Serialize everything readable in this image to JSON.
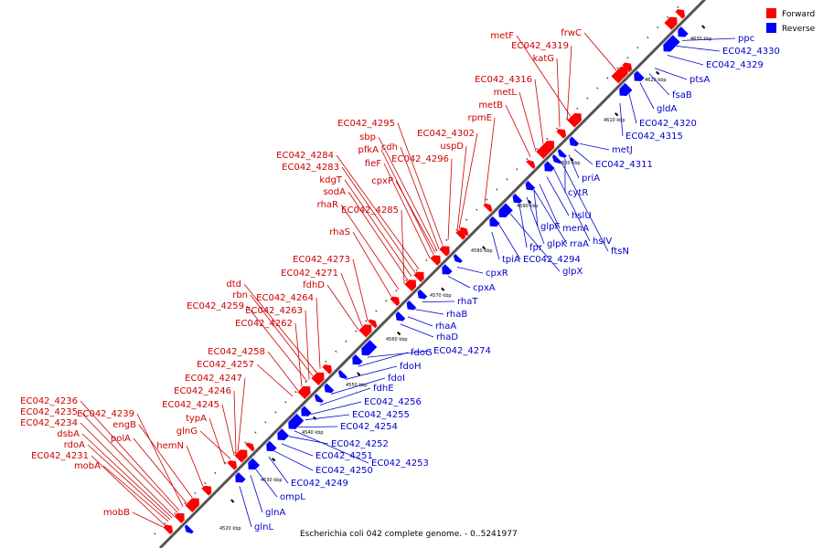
{
  "caption": "Escherichia coli 042 complete genome. - 0..5241977",
  "legend": {
    "forward": {
      "label": "Forward",
      "color": "#ff0000"
    },
    "reverse": {
      "label": "Reverse",
      "color": "#0000ff"
    }
  },
  "colors": {
    "forward_text": "#cc0000",
    "reverse_text": "#0000cc",
    "backbone": "#555555"
  },
  "ticks": [
    "4520 kbp",
    "4530 kbp",
    "4540 kbp",
    "4550 kbp",
    "4560 kbp",
    "4570 kbp",
    "4580 kbp",
    "4590 kbp",
    "4600 kbp",
    "4610 kbp",
    "4620 kbp",
    "4630 kbp"
  ],
  "forward_labels": [
    "mobB",
    "EC042_4231",
    "mobA",
    "rdoA",
    "dsbA",
    "EC042_4234",
    "EC042_4235",
    "EC042_4236",
    "EC042_4239",
    "polA",
    "engB",
    "hemN",
    "typA",
    "glnG",
    "EC042_4245",
    "EC042_4246",
    "EC042_4247",
    "EC042_4257",
    "EC042_4258",
    "EC042_4262",
    "EC042_4259",
    "EC042_4263",
    "rbn",
    "dtd",
    "EC042_4264",
    "fdhD",
    "EC042_4271",
    "EC042_4273",
    "rhaS",
    "rhaR",
    "EC042_4285",
    "sodA",
    "kdgT",
    "EC042_4283",
    "EC042_4284",
    "fieF",
    "pfkA",
    "cpxP",
    "sbp",
    "cdh",
    "EC042_4295",
    "EC042_4296",
    "uspD",
    "EC042_4302",
    "rpmE",
    "metB",
    "metL",
    "EC042_4316",
    "katG",
    "EC042_4319",
    "metF",
    "frwC"
  ],
  "reverse_labels": [
    "glnL",
    "glnA",
    "ompL",
    "EC042_4249",
    "EC042_4250",
    "EC042_4251",
    "EC042_4252",
    "EC042_4253",
    "EC042_4254",
    "EC042_4255",
    "EC042_4256",
    "fdhE",
    "fdoI",
    "fdoH",
    "fdoG",
    "EC042_4274",
    "rhaD",
    "rhaA",
    "rhaB",
    "rhaT",
    "cpxA",
    "cpxR",
    "tpiA",
    "EC042_4294",
    "glpX",
    "fpr",
    "glpK",
    "rraA",
    "glpF",
    "menA",
    "hslU",
    "hslV",
    "ftsN",
    "cytR",
    "priA",
    "EC042_4311",
    "metJ",
    "EC042_4315",
    "EC042_4320",
    "gldA",
    "fsaB",
    "ptsA",
    "EC042_4329",
    "EC042_4330",
    "ppc"
  ]
}
